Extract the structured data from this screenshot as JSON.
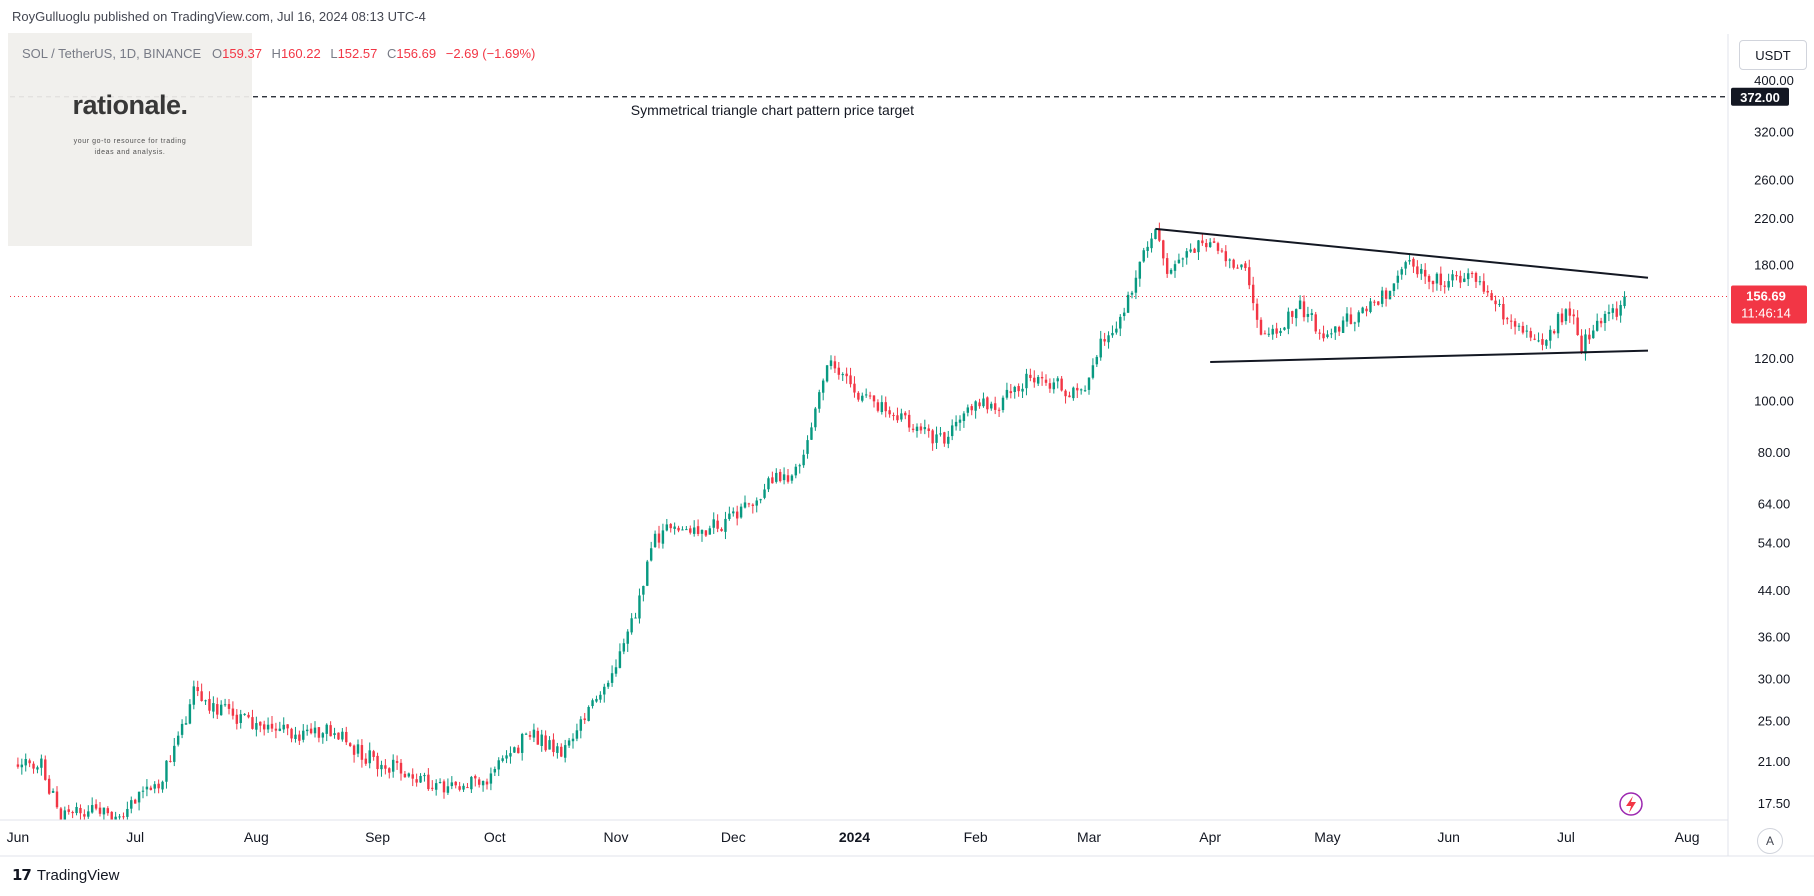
{
  "header": {
    "published": "RoyGulluoglu published on TradingView.com, Jul 16, 2024 08:13 UTC-4"
  },
  "legend": {
    "symbol": "SOL / TetherUS, 1D, BINANCE",
    "o_label": "O",
    "o_value": "159.37",
    "h_label": "H",
    "h_value": "160.22",
    "l_label": "L",
    "l_value": "152.57",
    "c_label": "C",
    "c_value": "156.69",
    "change": "−2.69 (−1.69%)"
  },
  "logo": {
    "name": "rationale.",
    "tagline_1": "your go-to resource for trading",
    "tagline_2": "ideas and analysis."
  },
  "currency_button": "USDT",
  "scale_button": "A",
  "brand": "TradingView",
  "colors": {
    "up": "#089981",
    "down": "#f23645",
    "grid": "#f0f3fa",
    "line": "#131722"
  },
  "chart_data": {
    "type": "candlestick",
    "scale": "log",
    "ylim": [
      16.5,
      420
    ],
    "y_ticks": [
      "400.00",
      "320.00",
      "260.00",
      "220.00",
      "180.00",
      "120.00",
      "100.00",
      "80.00",
      "64.00",
      "54.00",
      "44.00",
      "36.00",
      "30.00",
      "25.00",
      "21.00",
      "17.50"
    ],
    "x_ticks": [
      {
        "label": "Jun",
        "bold": false
      },
      {
        "label": "Jul",
        "bold": false
      },
      {
        "label": "Aug",
        "bold": false
      },
      {
        "label": "Sep",
        "bold": false
      },
      {
        "label": "Oct",
        "bold": false
      },
      {
        "label": "Nov",
        "bold": false
      },
      {
        "label": "Dec",
        "bold": false
      },
      {
        "label": "2024",
        "bold": true
      },
      {
        "label": "Feb",
        "bold": false
      },
      {
        "label": "Mar",
        "bold": false
      },
      {
        "label": "Apr",
        "bold": false
      },
      {
        "label": "May",
        "bold": false
      },
      {
        "label": "Jun",
        "bold": false
      },
      {
        "label": "Jul",
        "bold": false
      },
      {
        "label": "Aug",
        "bold": false
      }
    ],
    "price_path": [
      [
        "2023-06-01",
        21.2
      ],
      [
        "2023-06-07",
        20.5
      ],
      [
        "2023-06-12",
        16.5
      ],
      [
        "2023-06-20",
        16.8
      ],
      [
        "2023-06-27",
        16.6
      ],
      [
        "2023-07-01",
        17.6
      ],
      [
        "2023-07-08",
        19.5
      ],
      [
        "2023-07-13",
        24.0
      ],
      [
        "2023-07-16",
        28.5
      ],
      [
        "2023-07-20",
        27.0
      ],
      [
        "2023-07-28",
        25.0
      ],
      [
        "2023-08-05",
        24.5
      ],
      [
        "2023-08-12",
        23.2
      ],
      [
        "2023-08-20",
        24.0
      ],
      [
        "2023-08-28",
        21.5
      ],
      [
        "2023-09-05",
        20.5
      ],
      [
        "2023-09-12",
        19.3
      ],
      [
        "2023-09-20",
        18.5
      ],
      [
        "2023-09-28",
        19.3
      ],
      [
        "2023-10-05",
        21.8
      ],
      [
        "2023-10-10",
        23.5
      ],
      [
        "2023-10-18",
        22.0
      ],
      [
        "2023-10-25",
        26.0
      ],
      [
        "2023-10-31",
        30.0
      ],
      [
        "2023-11-06",
        39.5
      ],
      [
        "2023-11-11",
        55.0
      ],
      [
        "2023-11-16",
        58.5
      ],
      [
        "2023-11-22",
        56.0
      ],
      [
        "2023-11-30",
        59.5
      ],
      [
        "2023-12-06",
        64.0
      ],
      [
        "2023-12-12",
        72.0
      ],
      [
        "2023-12-18",
        73.0
      ],
      [
        "2023-12-22",
        97.0
      ],
      [
        "2023-12-25",
        120.0
      ],
      [
        "2024-01-01",
        105.0
      ],
      [
        "2024-01-07",
        97.0
      ],
      [
        "2024-01-13",
        93.0
      ],
      [
        "2024-01-23",
        84.0
      ],
      [
        "2024-01-30",
        98.0
      ],
      [
        "2024-02-07",
        98.0
      ],
      [
        "2024-02-15",
        111.0
      ],
      [
        "2024-02-21",
        107.0
      ],
      [
        "2024-02-28",
        103.0
      ],
      [
        "2024-03-05",
        133.0
      ],
      [
        "2024-03-10",
        147.0
      ],
      [
        "2024-03-14",
        182.0
      ],
      [
        "2024-03-18",
        206.0
      ],
      [
        "2024-03-21",
        175.0
      ],
      [
        "2024-03-28",
        194.0
      ],
      [
        "2024-04-01",
        199.0
      ],
      [
        "2024-04-05",
        182.0
      ],
      [
        "2024-04-10",
        175.0
      ],
      [
        "2024-04-13",
        138.0
      ],
      [
        "2024-04-18",
        135.0
      ],
      [
        "2024-04-24",
        151.0
      ],
      [
        "2024-05-01",
        130.0
      ],
      [
        "2024-05-06",
        142.0
      ],
      [
        "2024-05-12",
        150.0
      ],
      [
        "2024-05-18",
        165.0
      ],
      [
        "2024-05-21",
        187.0
      ],
      [
        "2024-05-26",
        171.0
      ],
      [
        "2024-06-01",
        166.0
      ],
      [
        "2024-06-06",
        172.0
      ],
      [
        "2024-06-12",
        154.0
      ],
      [
        "2024-06-18",
        136.0
      ],
      [
        "2024-06-24",
        126.0
      ],
      [
        "2024-06-30",
        144.0
      ],
      [
        "2024-07-03",
        147.0
      ],
      [
        "2024-07-05",
        126.0
      ],
      [
        "2024-07-09",
        141.0
      ],
      [
        "2024-07-13",
        144.0
      ],
      [
        "2024-07-16",
        156.69
      ]
    ],
    "triangle_upper": {
      "start": [
        "2024-03-18",
        210.0
      ],
      "end": [
        "2024-07-22",
        170.0
      ]
    },
    "triangle_lower": {
      "start": [
        "2024-04-01",
        118.0
      ],
      "end": [
        "2024-07-22",
        124.0
      ]
    },
    "target": {
      "label": "Symmetrical triangle chart pattern price target",
      "value": 372.0,
      "value_label": "372.00"
    },
    "current": {
      "value": 156.69,
      "value_label": "156.69",
      "countdown": "11:46:14"
    },
    "grid": false
  }
}
